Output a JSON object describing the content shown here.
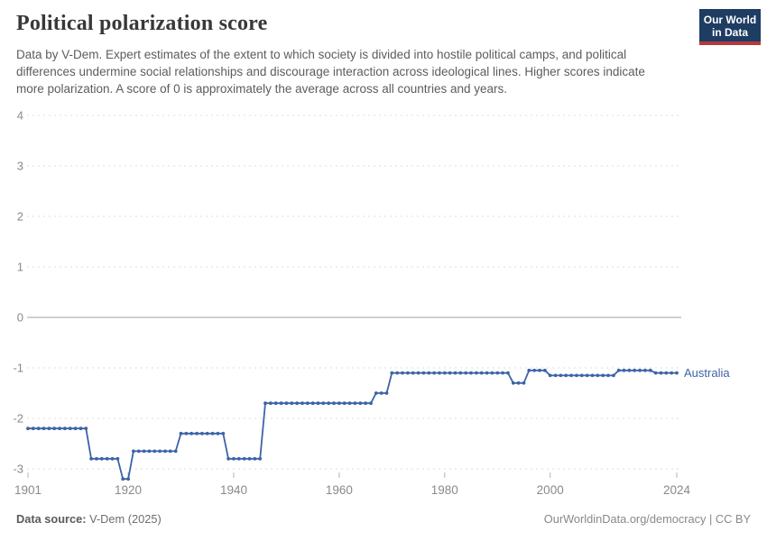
{
  "header": {
    "title": "Political polarization score",
    "subtitle": "Data by V-Dem. Expert estimates of the extent to which society is divided into hostile political camps, and political differences undermine social relationships and discourage interaction across ideological lines. Higher scores indicate more polarization. A score of 0 is approximately the average across all countries and years.",
    "logo": {
      "line1": "Our World",
      "line2": "in Data",
      "bg_color": "#1d3d63",
      "stripe_color": "#b5393d"
    }
  },
  "footer": {
    "source_label": "Data source:",
    "source_value": " V-Dem (2025)",
    "credit": "OurWorldinData.org/democracy | CC BY"
  },
  "colors": {
    "line": "#3d63a8",
    "grid": "#dddddd",
    "zero_line": "#a0a0a0",
    "tick_text": "#8a8a8a",
    "tick_mark": "#b5b5b5"
  },
  "chart_data": {
    "type": "line",
    "title": "Political polarization score",
    "xlabel": "",
    "ylabel": "",
    "x_range": [
      1901,
      2024
    ],
    "ylim": [
      -3.5,
      4
    ],
    "y_ticks": [
      4,
      3,
      2,
      1,
      0,
      -1,
      -2,
      -3
    ],
    "x_ticks": [
      1901,
      1920,
      1940,
      1960,
      1980,
      2000,
      2024
    ],
    "grid": "horizontal dashed, solid line at 0",
    "legend_position": "end-of-line label",
    "series": [
      {
        "name": "Australia",
        "color": "#3d63a8",
        "x_start": 1901,
        "x_step": 1,
        "values": [
          -2.2,
          -2.2,
          -2.2,
          -2.2,
          -2.2,
          -2.2,
          -2.2,
          -2.2,
          -2.2,
          -2.2,
          -2.2,
          -2.2,
          -2.8,
          -2.8,
          -2.8,
          -2.8,
          -2.8,
          -2.8,
          -3.2,
          -3.2,
          -2.65,
          -2.65,
          -2.65,
          -2.65,
          -2.65,
          -2.65,
          -2.65,
          -2.65,
          -2.65,
          -2.3,
          -2.3,
          -2.3,
          -2.3,
          -2.3,
          -2.3,
          -2.3,
          -2.3,
          -2.3,
          -2.8,
          -2.8,
          -2.8,
          -2.8,
          -2.8,
          -2.8,
          -2.8,
          -1.7,
          -1.7,
          -1.7,
          -1.7,
          -1.7,
          -1.7,
          -1.7,
          -1.7,
          -1.7,
          -1.7,
          -1.7,
          -1.7,
          -1.7,
          -1.7,
          -1.7,
          -1.7,
          -1.7,
          -1.7,
          -1.7,
          -1.7,
          -1.7,
          -1.5,
          -1.5,
          -1.5,
          -1.1,
          -1.1,
          -1.1,
          -1.1,
          -1.1,
          -1.1,
          -1.1,
          -1.1,
          -1.1,
          -1.1,
          -1.1,
          -1.1,
          -1.1,
          -1.1,
          -1.1,
          -1.1,
          -1.1,
          -1.1,
          -1.1,
          -1.1,
          -1.1,
          -1.1,
          -1.1,
          -1.3,
          -1.3,
          -1.3,
          -1.05,
          -1.05,
          -1.05,
          -1.05,
          -1.15,
          -1.15,
          -1.15,
          -1.15,
          -1.15,
          -1.15,
          -1.15,
          -1.15,
          -1.15,
          -1.15,
          -1.15,
          -1.15,
          -1.15,
          -1.05,
          -1.05,
          -1.05,
          -1.05,
          -1.05,
          -1.05,
          -1.05,
          -1.1,
          -1.1,
          -1.1,
          -1.1,
          -1.1
        ]
      }
    ]
  }
}
